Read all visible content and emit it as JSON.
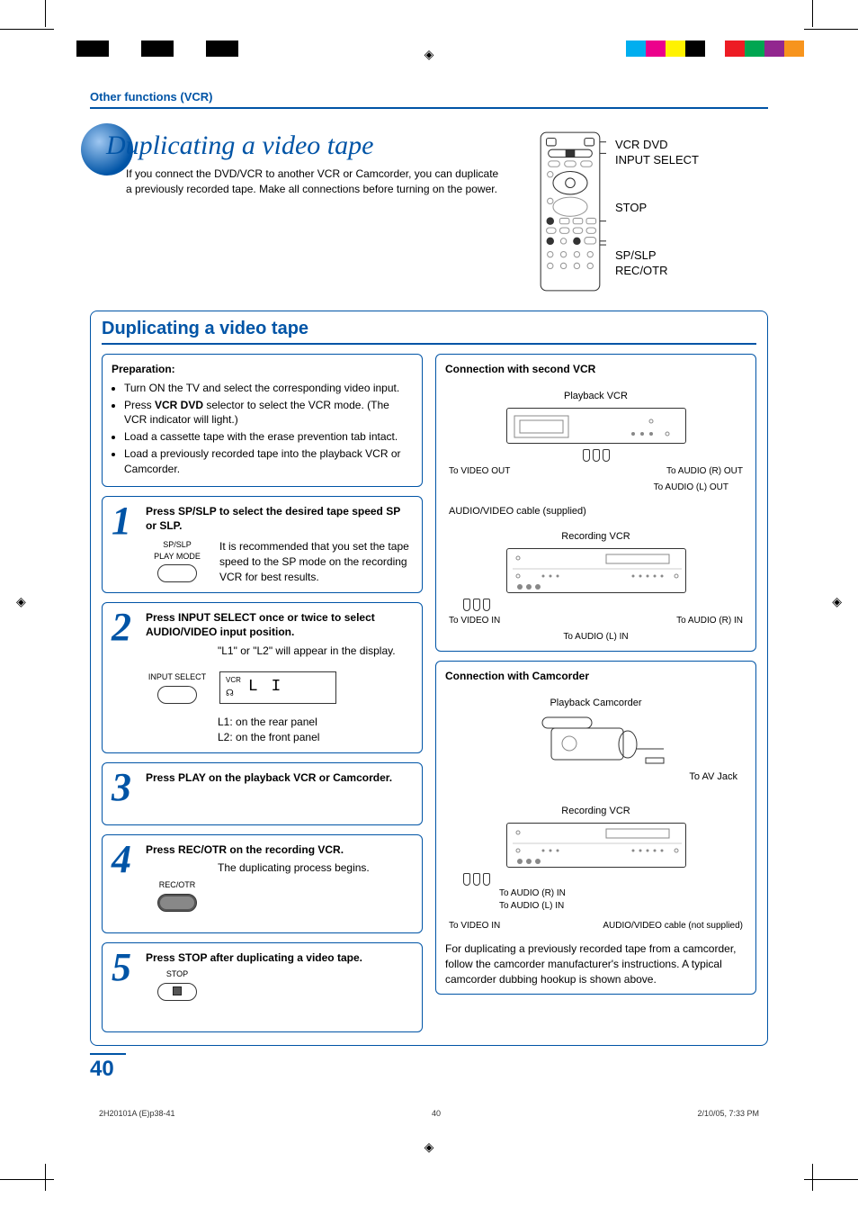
{
  "cropColorsLeft": [
    "#000000",
    "#ffffff",
    "#000000",
    "#ffffff",
    "#000000",
    "#ffffff"
  ],
  "cropColorsRight": [
    "#00aeef",
    "#ec008c",
    "#fff200",
    "#000000",
    "#ffffff",
    "#ed1c24",
    "#00a651",
    "#92278f",
    "#f7941d"
  ],
  "sectionHeader": "Other functions (VCR)",
  "mainTitle": "Duplicating a video tape",
  "intro": "If you connect the DVD/VCR to another VCR or Camcorder, you can duplicate a previously recorded tape. Make all connections before turning on the power.",
  "remoteLabels": {
    "l1a": "VCR DVD",
    "l1b": "INPUT SELECT",
    "l2": "STOP",
    "l3a": "SP/SLP",
    "l3b": "REC/OTR"
  },
  "boxTitle": "Duplicating a video tape",
  "prep": {
    "title": "Preparation:",
    "items": [
      "Turn ON the TV and select the corresponding video input.",
      "Press <b>VCR DVD</b> selector to select the VCR mode. (The VCR indicator will light.)",
      "Load a cassette tape with the erase prevention tab intact.",
      "Load a previously recorded tape into the playback VCR or Camcorder."
    ]
  },
  "steps": [
    {
      "num": "1",
      "head": "Press SP/SLP to select the desired tape speed SP or SLP.",
      "iconLabel": "SP/SLP\nPLAY MODE",
      "detail": "It is recommended that you set the tape speed to the SP mode on the recording VCR for best results."
    },
    {
      "num": "2",
      "head": "Press INPUT SELECT once or twice to select AUDIO/VIDEO input position.",
      "iconLabel": "INPUT SELECT",
      "detail1": "\"L1\" or \"L2\" will appear in the display.",
      "vcrLabel": "VCR",
      "l1l2display": "L  I",
      "sub1": "L1: on the rear panel",
      "sub2": "L2: on the front panel"
    },
    {
      "num": "3",
      "head": "Press PLAY on the playback VCR or Camcorder."
    },
    {
      "num": "4",
      "head": "Press REC/OTR on the recording VCR.",
      "iconLabel": "REC/OTR",
      "detail": "The duplicating process begins."
    },
    {
      "num": "5",
      "head": "Press STOP after duplicating a video tape.",
      "iconLabel": "STOP"
    }
  ],
  "conn1": {
    "title": "Connection with second VCR",
    "playback": "Playback VCR",
    "toVideoOut": "To VIDEO OUT",
    "toAudioROut": "To AUDIO (R) OUT",
    "toAudioLOut": "To AUDIO (L) OUT",
    "cable": "AUDIO/VIDEO cable (supplied)",
    "recording": "Recording VCR",
    "toVideoIn": "To VIDEO IN",
    "toAudioRIn": "To AUDIO (R) IN",
    "toAudioLIn": "To AUDIO (L) IN"
  },
  "conn2": {
    "title": "Connection with Camcorder",
    "playback": "Playback Camcorder",
    "toAvJack": "To AV Jack",
    "recording": "Recording VCR",
    "toAudioRIn": "To AUDIO (R) IN",
    "toAudioLIn": "To AUDIO (L) IN",
    "toVideoIn": "To VIDEO IN",
    "cable": "AUDIO/VIDEO cable (not supplied)",
    "note": "For duplicating a previously recorded tape from a camcorder, follow the camcorder manufacturer's instructions. A typical camcorder dubbing hookup is shown above."
  },
  "pageNum": "40",
  "footer": {
    "file": "2H20101A (E)p38-41",
    "pg": "40",
    "date": "2/10/05, 7:33 PM"
  }
}
